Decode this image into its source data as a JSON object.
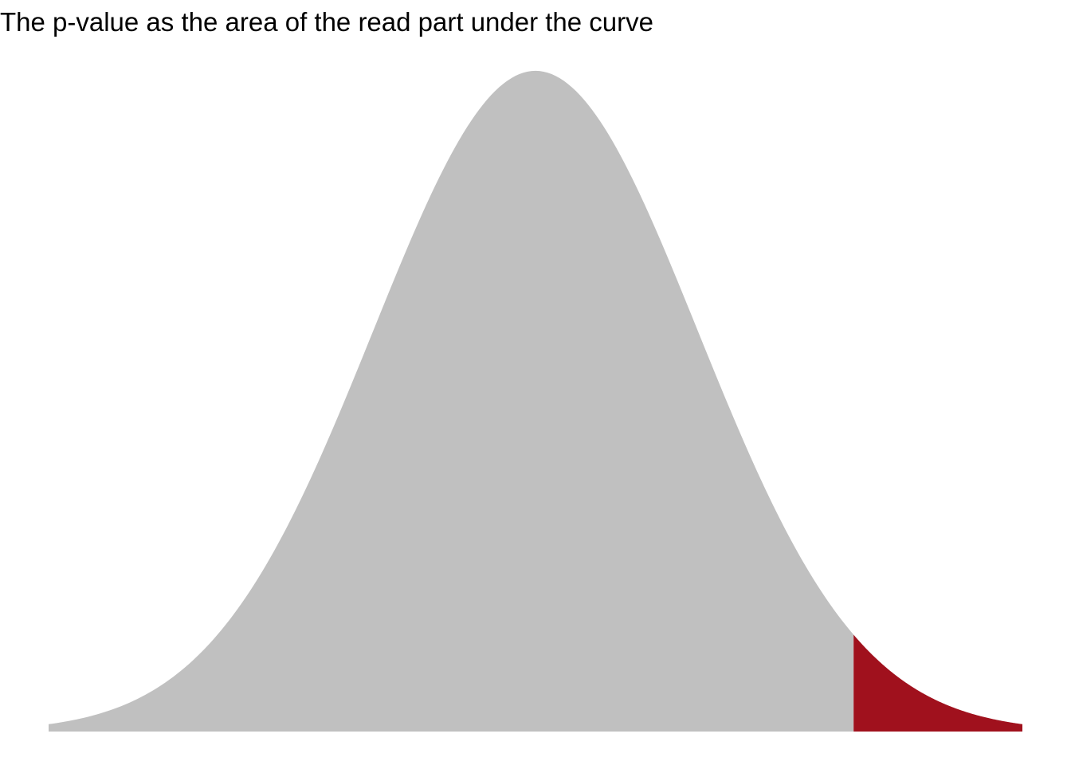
{
  "chart_data": {
    "type": "area",
    "title": "The p-value as the area of the read part under the curve",
    "xlabel": "",
    "ylabel": "",
    "distribution": "standard normal density",
    "xlim": [
      -3.0,
      3.0
    ],
    "ylim": [
      0,
      0.3989
    ],
    "critical_x": 1.96,
    "regions": [
      {
        "from": -3.0,
        "to": 1.96,
        "color": "#c0c0c0"
      },
      {
        "from": 1.96,
        "to": 3.0,
        "color": "#a0111d"
      }
    ],
    "axes_visible": false,
    "grid": false
  }
}
